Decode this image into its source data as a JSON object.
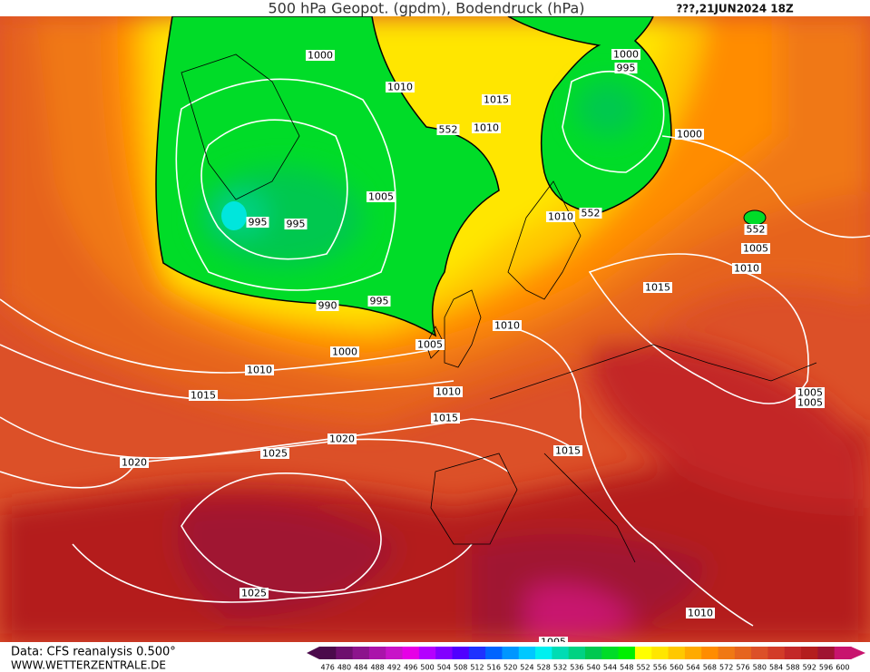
{
  "header": {
    "title": "500 hPa Geopot. (gpdm), Bodendruck (hPa)",
    "run": "???,21JUN2024 18Z"
  },
  "contour_labels": [
    1000,
    1010,
    1015,
    1010,
    552,
    1000,
    995,
    1000,
    1005,
    995,
    995,
    1010,
    552,
    552,
    1005,
    1010,
    1015,
    990,
    995,
    1010,
    1005,
    1000,
    1010,
    1015,
    1010,
    1015,
    1005,
    1005,
    1020,
    1025,
    1015,
    1020,
    1025,
    1010,
    1005
  ],
  "legend": {
    "levels": [
      476,
      480,
      484,
      488,
      492,
      496,
      500,
      504,
      508,
      512,
      516,
      520,
      524,
      528,
      532,
      536,
      540,
      544,
      548,
      552,
      556,
      560,
      564,
      568,
      572,
      576,
      580,
      584,
      588,
      592,
      596,
      600
    ],
    "colors": [
      "#4b0a4b",
      "#6e0f6e",
      "#8c148c",
      "#aa14aa",
      "#c814c8",
      "#e600e6",
      "#b400ff",
      "#8200ff",
      "#5000ff",
      "#1e32ff",
      "#0064ff",
      "#0096ff",
      "#00c8ff",
      "#00f0f0",
      "#00dcb4",
      "#00d282",
      "#00c850",
      "#00dc28",
      "#00f000",
      "#ffff00",
      "#ffe600",
      "#ffc800",
      "#ffaa00",
      "#ff8c00",
      "#f07814",
      "#e6641e",
      "#dc5028",
      "#d23c28",
      "#c32828",
      "#b41e1e",
      "#a01432",
      "#c8146e"
    ]
  },
  "footer": {
    "source": "Data: CFS reanalysis 0.500°",
    "site": "WWW.WETTERZENTRALE.DE"
  }
}
